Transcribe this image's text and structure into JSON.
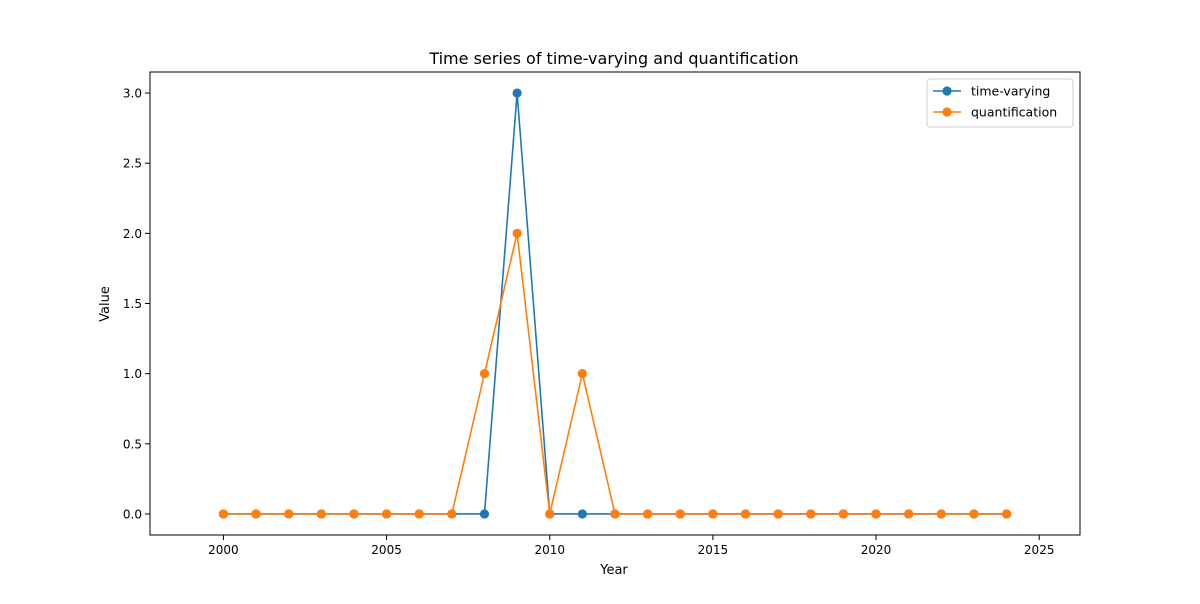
{
  "chart_data": {
    "type": "line",
    "title": "Time series of time-varying and quantification",
    "xlabel": "Year",
    "ylabel": "Value",
    "xlim": [
      1997.75,
      2026.25
    ],
    "ylim": [
      -0.15,
      3.15
    ],
    "x_ticks": [
      2000,
      2005,
      2010,
      2015,
      2020,
      2025
    ],
    "y_ticks": [
      0.0,
      0.5,
      1.0,
      1.5,
      2.0,
      2.5,
      3.0
    ],
    "y_tick_labels": [
      "0.0",
      "0.5",
      "1.0",
      "1.5",
      "2.0",
      "2.5",
      "3.0"
    ],
    "grid": false,
    "legend_position": "top-right",
    "x": [
      2000,
      2001,
      2002,
      2003,
      2004,
      2005,
      2006,
      2007,
      2008,
      2009,
      2010,
      2011,
      2012,
      2013,
      2014,
      2015,
      2016,
      2017,
      2018,
      2019,
      2020,
      2021,
      2022,
      2023,
      2024
    ],
    "series": [
      {
        "name": "time-varying",
        "color": "#1f77b4",
        "values": [
          0,
          0,
          0,
          0,
          0,
          0,
          0,
          0,
          0,
          3,
          0,
          0,
          0,
          0,
          0,
          0,
          0,
          0,
          0,
          0,
          0,
          0,
          0,
          0,
          0
        ]
      },
      {
        "name": "quantification",
        "color": "#ff7f0e",
        "values": [
          0,
          0,
          0,
          0,
          0,
          0,
          0,
          0,
          1,
          2,
          0,
          1,
          0,
          0,
          0,
          0,
          0,
          0,
          0,
          0,
          0,
          0,
          0,
          0,
          0
        ]
      }
    ]
  }
}
